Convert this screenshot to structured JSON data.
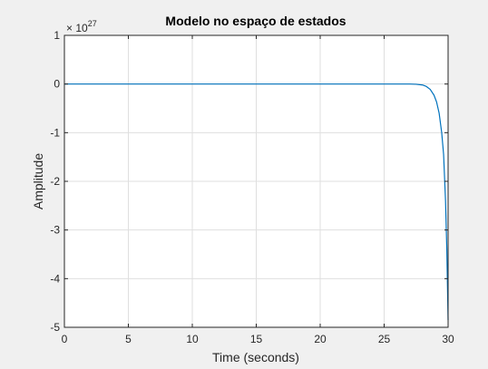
{
  "chart_data": {
    "type": "line",
    "title": "Modelo no espaço de estados",
    "xlabel": "Time (seconds)",
    "ylabel": "Amplitude",
    "xlim": [
      0,
      30
    ],
    "ylim": [
      -5,
      1
    ],
    "xticks": [
      0,
      5,
      10,
      15,
      20,
      25,
      30
    ],
    "yticks": [
      -5,
      -4,
      -3,
      -2,
      -1,
      0,
      1
    ],
    "y_exponent_base": "× 10",
    "y_exponent_power": "27",
    "grid": true,
    "series": [
      {
        "color": "#0072bd",
        "x": [
          0,
          5,
          10,
          15,
          20,
          25,
          26,
          27,
          27.5,
          28,
          28.3,
          28.6,
          28.9,
          29.1,
          29.3,
          29.5,
          29.65,
          29.8,
          29.9,
          30
        ],
        "y": [
          0,
          0,
          0,
          0,
          0,
          0,
          0,
          0,
          -0.005,
          -0.02,
          -0.05,
          -0.11,
          -0.23,
          -0.37,
          -0.6,
          -1.0,
          -1.45,
          -2.4,
          -3.4,
          -4.85
        ]
      }
    ]
  },
  "colors": {
    "figure_bg": "#f0f0f0",
    "axes_bg": "#ffffff",
    "grid": "#dfdfdf",
    "axes_edge": "#262626"
  }
}
